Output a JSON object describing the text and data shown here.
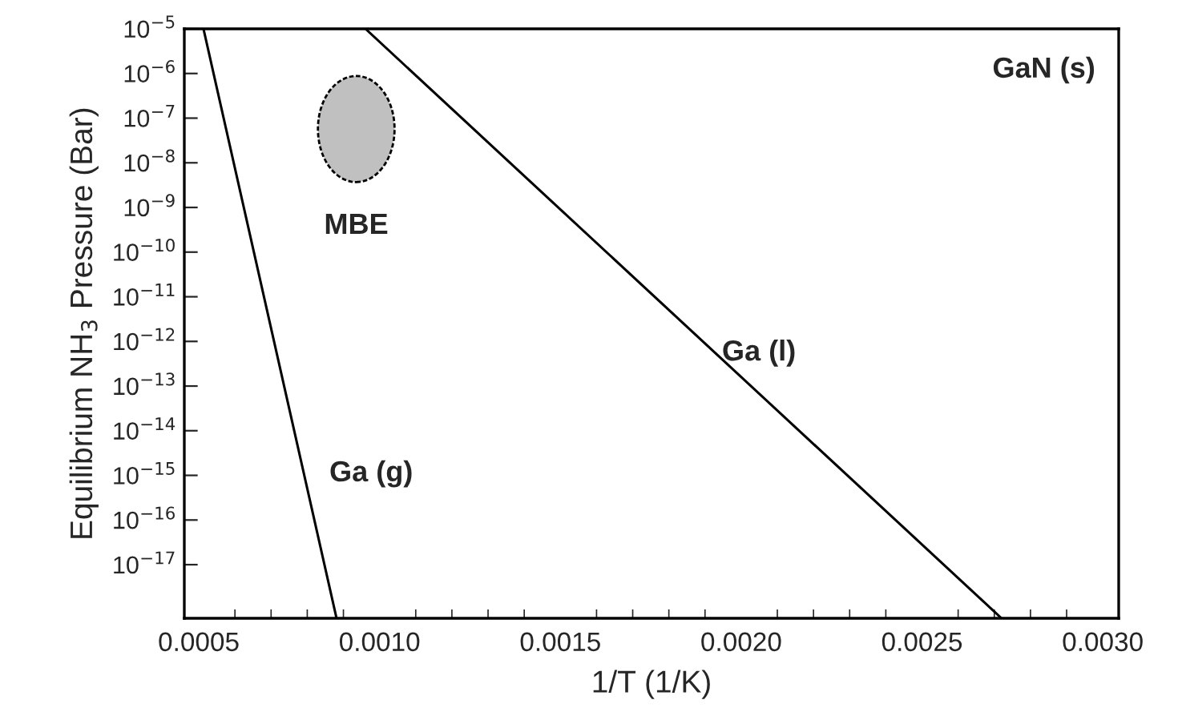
{
  "chart_data": {
    "type": "line",
    "xlabel": "1/T (1/K)",
    "ylabel": "Equilibrium NH$_{3}$ Pressure (Bar)",
    "log": "y",
    "xlim": [
      0.00046,
      0.003044
    ],
    "ylim": [
      6.3e-19,
      1e-05
    ],
    "xticks": [
      {
        "value": 0.0005,
        "label": "0.0005"
      },
      {
        "value": 0.001,
        "label": "0.0010"
      },
      {
        "value": 0.0015,
        "label": "0.0015"
      },
      {
        "value": 0.002,
        "label": "0.0020"
      },
      {
        "value": 0.0025,
        "label": "0.0025"
      },
      {
        "value": 0.003,
        "label": "0.0030"
      }
    ],
    "yticks": [
      {
        "value": 1e-05,
        "label": "10$^{−5}$"
      },
      {
        "value": 1e-06,
        "label": "10$^{−6}$"
      },
      {
        "value": 1e-07,
        "label": "10$^{−7}$"
      },
      {
        "value": 1e-08,
        "label": "10$^{−8}$"
      },
      {
        "value": 1e-09,
        "label": "10$^{−9}$"
      },
      {
        "value": 1e-10,
        "label": "10$^{−10}$"
      },
      {
        "value": 1e-11,
        "label": "10$^{−11}$"
      },
      {
        "value": 1e-12,
        "label": "10$^{−12}$"
      },
      {
        "value": 1e-13,
        "label": "10$^{−13}$"
      },
      {
        "value": 1e-14,
        "label": "10$^{−14}$"
      },
      {
        "value": 1e-15,
        "label": "10$^{−15}$"
      },
      {
        "value": 1e-16,
        "label": "10$^{−16}$"
      },
      {
        "value": 1e-17,
        "label": "10$^{−17}$"
      }
    ],
    "grid": false,
    "series": [
      {
        "color": "#000000",
        "x": [
          0.000513,
          0.000881
        ],
        "values": [
          1e-05,
          6.3e-19
        ]
      },
      {
        "color": "#000000",
        "x": [
          0.000961,
          0.00272
        ],
        "values": [
          1e-05,
          6.3e-19
        ]
      }
    ],
    "annotations": [
      "GaN (s)",
      "MBE",
      "Ga (l)",
      "Ga (g)"
    ]
  }
}
